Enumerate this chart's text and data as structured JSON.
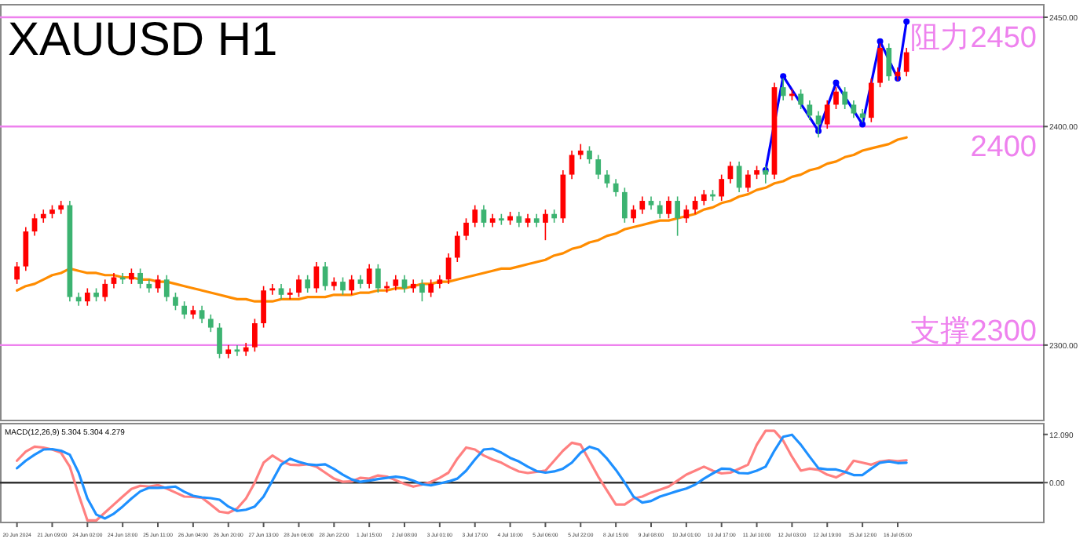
{
  "chart_data": [
    {
      "type": "candlestick",
      "title": "XAUUSD H1",
      "tick_labels": "y",
      "categories": [
        null,
        null,
        null,
        null,
        null,
        null,
        null,
        null,
        null,
        null,
        null,
        null,
        null,
        null,
        null,
        null,
        null,
        null,
        null,
        null,
        null,
        null,
        null,
        null,
        null,
        null,
        null,
        null,
        null,
        null,
        null,
        null,
        null,
        null,
        null,
        null,
        null,
        null,
        null,
        null,
        null,
        null,
        null,
        null,
        null,
        null,
        null,
        null,
        null,
        null,
        null,
        null,
        null,
        null,
        null,
        null,
        null,
        null,
        null,
        null,
        null,
        null,
        null,
        null,
        null,
        null,
        null,
        null,
        null,
        null,
        null,
        null,
        null,
        null,
        null,
        null,
        null,
        null,
        null,
        null,
        null,
        null,
        null,
        null,
        null,
        null,
        null,
        null,
        null,
        null,
        null,
        null,
        null,
        null,
        null,
        null,
        null,
        null,
        null,
        null,
        null,
        null
      ],
      "ohlc": [
        [
          2330,
          2338,
          2328,
          2336
        ],
        [
          2336,
          2354,
          2334,
          2352
        ],
        [
          2352,
          2360,
          2350,
          2358
        ],
        [
          2358,
          2362,
          2356,
          2360
        ],
        [
          2360,
          2364,
          2358,
          2362
        ],
        [
          2362,
          2366,
          2360,
          2364
        ],
        [
          2364,
          2366,
          2320,
          2322
        ],
        [
          2322,
          2324,
          2318,
          2320
        ],
        [
          2320,
          2326,
          2318,
          2324
        ],
        [
          2324,
          2326,
          2320,
          2322
        ],
        [
          2322,
          2330,
          2320,
          2328
        ],
        [
          2328,
          2333,
          2326,
          2331
        ],
        [
          2331,
          2333,
          2328,
          2330
        ],
        [
          2330,
          2335,
          2328,
          2333
        ],
        [
          2333,
          2335,
          2326,
          2328
        ],
        [
          2328,
          2330,
          2324,
          2326
        ],
        [
          2326,
          2332,
          2324,
          2330
        ],
        [
          2330,
          2332,
          2320,
          2322
        ],
        [
          2322,
          2324,
          2316,
          2318
        ],
        [
          2318,
          2320,
          2312,
          2314
        ],
        [
          2314,
          2318,
          2312,
          2316
        ],
        [
          2316,
          2318,
          2310,
          2312
        ],
        [
          2312,
          2314,
          2306,
          2308
        ],
        [
          2308,
          2310,
          2294,
          2296
        ],
        [
          2296,
          2300,
          2294,
          2298
        ],
        [
          2298,
          2300,
          2295,
          2297
        ],
        [
          2297,
          2301,
          2295,
          2299
        ],
        [
          2299,
          2312,
          2297,
          2310
        ],
        [
          2310,
          2327,
          2308,
          2325
        ],
        [
          2325,
          2328,
          2323,
          2326
        ],
        [
          2326,
          2328,
          2321,
          2323
        ],
        [
          2323,
          2326,
          2321,
          2324
        ],
        [
          2324,
          2332,
          2322,
          2330
        ],
        [
          2330,
          2332,
          2324,
          2326
        ],
        [
          2326,
          2338,
          2324,
          2336
        ],
        [
          2336,
          2338,
          2325,
          2327
        ],
        [
          2327,
          2331,
          2325,
          2329
        ],
        [
          2329,
          2331,
          2323,
          2325
        ],
        [
          2325,
          2332,
          2323,
          2330
        ],
        [
          2330,
          2332,
          2326,
          2328
        ],
        [
          2328,
          2337,
          2326,
          2335
        ],
        [
          2335,
          2337,
          2324,
          2326
        ],
        [
          2326,
          2329,
          2324,
          2327
        ],
        [
          2327,
          2332,
          2325,
          2330
        ],
        [
          2330,
          2332,
          2324,
          2326
        ],
        [
          2326,
          2330,
          2324,
          2328
        ],
        [
          2328,
          2330,
          2320,
          2324
        ],
        [
          2324,
          2330,
          2322,
          2328
        ],
        [
          2328,
          2332,
          2326,
          2330
        ],
        [
          2330,
          2342,
          2328,
          2340
        ],
        [
          2340,
          2352,
          2338,
          2350
        ],
        [
          2350,
          2358,
          2348,
          2356
        ],
        [
          2356,
          2364,
          2354,
          2362
        ],
        [
          2362,
          2364,
          2354,
          2356
        ],
        [
          2356,
          2360,
          2354,
          2358
        ],
        [
          2358,
          2360,
          2355,
          2357
        ],
        [
          2357,
          2361,
          2355,
          2359
        ],
        [
          2359,
          2361,
          2354,
          2356
        ],
        [
          2356,
          2360,
          2354,
          2358
        ],
        [
          2358,
          2360,
          2354,
          2356
        ],
        [
          2356,
          2362,
          2348,
          2360
        ],
        [
          2360,
          2362,
          2356,
          2358
        ],
        [
          2358,
          2380,
          2356,
          2378
        ],
        [
          2378,
          2389,
          2376,
          2387
        ],
        [
          2387,
          2392,
          2385,
          2389
        ],
        [
          2389,
          2391,
          2383,
          2385
        ],
        [
          2385,
          2387,
          2376,
          2378
        ],
        [
          2378,
          2380,
          2372,
          2374
        ],
        [
          2374,
          2376,
          2368,
          2370
        ],
        [
          2370,
          2372,
          2356,
          2358
        ],
        [
          2358,
          2364,
          2356,
          2362
        ],
        [
          2362,
          2368,
          2360,
          2366
        ],
        [
          2366,
          2368,
          2362,
          2364
        ],
        [
          2364,
          2366,
          2358,
          2360
        ],
        [
          2360,
          2368,
          2358,
          2366
        ],
        [
          2366,
          2368,
          2350,
          2358
        ],
        [
          2358,
          2364,
          2356,
          2362
        ],
        [
          2362,
          2368,
          2360,
          2366
        ],
        [
          2366,
          2371,
          2364,
          2369
        ],
        [
          2369,
          2371,
          2366,
          2368
        ],
        [
          2368,
          2378,
          2366,
          2376
        ],
        [
          2376,
          2384,
          2374,
          2382
        ],
        [
          2382,
          2384,
          2370,
          2372
        ],
        [
          2372,
          2380,
          2370,
          2378
        ],
        [
          2378,
          2382,
          2376,
          2380
        ],
        [
          2380,
          2382,
          2374,
          2378
        ],
        [
          2378,
          2420,
          2376,
          2418
        ],
        [
          2418,
          2422,
          2412,
          2414
        ],
        [
          2414,
          2417,
          2412,
          2415
        ],
        [
          2415,
          2417,
          2408,
          2410
        ],
        [
          2410,
          2412,
          2403,
          2405
        ],
        [
          2405,
          2407,
          2395,
          2401
        ],
        [
          2401,
          2412,
          2399,
          2410
        ],
        [
          2410,
          2418,
          2408,
          2416
        ],
        [
          2416,
          2418,
          2408,
          2410
        ],
        [
          2410,
          2412,
          2404,
          2406
        ],
        [
          2406,
          2408,
          2402,
          2404
        ],
        [
          2404,
          2422,
          2402,
          2420
        ],
        [
          2420,
          2438,
          2418,
          2436
        ],
        [
          2436,
          2438,
          2421,
          2423
        ],
        [
          2423,
          2427,
          2421,
          2425
        ],
        [
          2425,
          2436,
          2423,
          2434
        ]
      ],
      "colors": [
        "#ff0000",
        "#ff0000",
        "#ff0000",
        "#ff0000",
        "#ff0000",
        "#ff0000",
        "#3cb371",
        "#3cb371",
        "#ff0000",
        "#3cb371",
        "#ff0000",
        "#ff0000",
        "#3cb371",
        "#ff0000",
        "#3cb371",
        "#3cb371",
        "#ff0000",
        "#3cb371",
        "#3cb371",
        "#3cb371",
        "#ff0000",
        "#3cb371",
        "#3cb371",
        "#3cb371",
        "#ff0000",
        "#3cb371",
        "#ff0000",
        "#ff0000",
        "#ff0000",
        "#ff0000",
        "#3cb371",
        "#ff0000",
        "#ff0000",
        "#3cb371",
        "#ff0000",
        "#3cb371",
        "#ff0000",
        "#3cb371",
        "#ff0000",
        "#3cb371",
        "#ff0000",
        "#3cb371",
        "#ff0000",
        "#ff0000",
        "#3cb371",
        "#ff0000",
        "#3cb371",
        "#ff0000",
        "#ff0000",
        "#ff0000",
        "#ff0000",
        "#ff0000",
        "#ff0000",
        "#3cb371",
        "#ff0000",
        "#3cb371",
        "#ff0000",
        "#3cb371",
        "#ff0000",
        "#3cb371",
        "#ff0000",
        "#3cb371",
        "#ff0000",
        "#ff0000",
        "#ff0000",
        "#3cb371",
        "#3cb371",
        "#3cb371",
        "#3cb371",
        "#3cb371",
        "#ff0000",
        "#ff0000",
        "#3cb371",
        "#3cb371",
        "#ff0000",
        "#3cb371",
        "#ff0000",
        "#ff0000",
        "#ff0000",
        "#3cb371",
        "#ff0000",
        "#ff0000",
        "#3cb371",
        "#ff0000",
        "#ff0000",
        "#3cb371",
        "#ff0000",
        "#3cb371",
        "#ff0000",
        "#3cb371",
        "#3cb371",
        "#3cb371",
        "#ff0000",
        "#ff0000",
        "#3cb371",
        "#3cb371",
        "#3cb371",
        "#ff0000",
        "#ff0000",
        "#3cb371",
        "#ff0000",
        "#ff0000"
      ],
      "series": [
        {
          "type": "line",
          "color": "#ff8c00",
          "values": [
            2325,
            2327,
            2328,
            2330,
            2332,
            2333,
            2335,
            2334,
            2333,
            2333,
            2332,
            2332,
            2331,
            2331,
            2330,
            2330,
            2329,
            2329,
            2328,
            2327,
            2326,
            2325,
            2324,
            2323,
            2322,
            2321,
            2321,
            2320,
            2320,
            2320,
            2321,
            2321,
            2321,
            2322,
            2322,
            2322,
            2323,
            2323,
            2323,
            2324,
            2324,
            2325,
            2325,
            2326,
            2326,
            2327,
            2328,
            2328,
            2329,
            2329,
            2330,
            2331,
            2332,
            2333,
            2334,
            2335,
            2335,
            2336,
            2337,
            2338,
            2339,
            2341,
            2342,
            2344,
            2345,
            2347,
            2348,
            2350,
            2351,
            2353,
            2354,
            2355,
            2356,
            2357,
            2357,
            2358,
            2359,
            2360,
            2362,
            2363,
            2365,
            2366,
            2368,
            2369,
            2371,
            2372,
            2374,
            2375,
            2377,
            2378,
            2380,
            2381,
            2383,
            2384,
            2386,
            2387,
            2389,
            2390,
            2391,
            2392,
            2394,
            2395
          ]
        },
        {
          "type": "line",
          "color": "#0000ff",
          "marker": "circle",
          "values": [
            null,
            null,
            null,
            null,
            null,
            null,
            null,
            null,
            null,
            null,
            null,
            null,
            null,
            null,
            null,
            null,
            null,
            null,
            null,
            null,
            null,
            null,
            null,
            null,
            null,
            null,
            null,
            null,
            null,
            null,
            null,
            null,
            null,
            null,
            null,
            null,
            null,
            null,
            null,
            null,
            null,
            null,
            null,
            null,
            null,
            null,
            null,
            null,
            null,
            null,
            null,
            null,
            null,
            null,
            null,
            null,
            null,
            null,
            null,
            null,
            null,
            null,
            null,
            null,
            null,
            null,
            null,
            null,
            null,
            null,
            null,
            null,
            null,
            null,
            null,
            null,
            null,
            null,
            null,
            null,
            null,
            null,
            null,
            null,
            null,
            2380,
            null,
            2423,
            null,
            null,
            null,
            2398,
            null,
            2420,
            null,
            null,
            2401,
            null,
            2439,
            null,
            2422,
            2448
          ]
        }
      ],
      "ylim": [
        2265.5,
        2455.75
      ],
      "yticks": [
        {
          "value": 2300,
          "label": "2300.00"
        },
        {
          "value": 2400,
          "label": "2400.00"
        },
        {
          "value": 2450,
          "label": "2450.00"
        }
      ],
      "ref_lines": [
        {
          "axis": "y",
          "value": 2450,
          "label": "阻力2450",
          "color": "#ee82ee"
        },
        {
          "axis": "y",
          "value": 2400,
          "label": "2400",
          "color": "#ee82ee"
        },
        {
          "axis": "y",
          "value": 2300,
          "label": "支撑2300",
          "color": "#ee82ee"
        }
      ]
    },
    {
      "type": "line",
      "title": "MACD(12,26,9) 5.304 5.304 4.279",
      "categories": [
        "20 Jun 2024",
        null,
        null,
        null,
        "21 Jun 09:00",
        null,
        null,
        null,
        "24 Jun 02:00",
        null,
        null,
        null,
        "24 Jun 18:00",
        null,
        null,
        null,
        "25 Jun 11:00",
        null,
        null,
        null,
        "26 Jun 04:00",
        null,
        null,
        null,
        "26 Jun 20:00",
        null,
        null,
        null,
        "27 Jun 13:00",
        null,
        null,
        null,
        "28 Jun 06:00",
        null,
        null,
        null,
        "28 Jun 22:00",
        null,
        null,
        null,
        "1 Jul 15:00",
        null,
        null,
        null,
        "2 Jul 08:00",
        null,
        null,
        null,
        "3 Jul 01:00",
        null,
        null,
        null,
        "3 Jul 17:00",
        null,
        null,
        null,
        "4 Jul 10:00",
        null,
        null,
        null,
        "5 Jul 06:00",
        null,
        null,
        null,
        "5 Jul 22:00",
        null,
        null,
        null,
        "8 Jul 15:00",
        null,
        null,
        null,
        "9 Jul 08:00",
        null,
        null,
        null,
        "10 Jul 01:00",
        null,
        null,
        null,
        "10 Jul 17:00",
        null,
        null,
        null,
        "11 Jul 10:00",
        null,
        null,
        null,
        "12 Jul 03:00",
        null,
        null,
        null,
        "12 Jul 19:00",
        null,
        null,
        null,
        "15 Jul 12:00",
        null,
        null,
        null,
        "16 Jul 05:00",
        null
      ],
      "series": [
        {
          "color": "#ff8080",
          "values": [
            5.5,
            7.8,
            9.0,
            8.8,
            8.3,
            7.5,
            4,
            -3,
            -9.5,
            -9.5,
            -7.5,
            -5.5,
            -3.5,
            -1.6,
            -0.8,
            -1.0,
            -0.6,
            -1.5,
            -2.5,
            -3.5,
            -3.6,
            -3.8,
            -5.5,
            -7.3,
            -7.6,
            -6.5,
            -4.0,
            0.0,
            5.0,
            6.8,
            5.4,
            4.5,
            4.4,
            4.6,
            4.0,
            2.5,
            1.0,
            0.2,
            0.3,
            1.2,
            1.0,
            1.8,
            1.5,
            0.6,
            -0.3,
            -1.0,
            -0.5,
            0.2,
            1.2,
            2.5,
            6.0,
            8.8,
            8.3,
            6.8,
            5.8,
            5.0,
            3.8,
            2.8,
            2.4,
            2.7,
            3.0,
            5.5,
            8.0,
            10.0,
            9.5,
            5.5,
            1.5,
            -2.0,
            -5.5,
            -5.5,
            -4.0,
            -3.5,
            -2.5,
            -1.8,
            -1.0,
            0.5,
            2.0,
            3.0,
            4.0,
            3.0,
            2.3,
            2.5,
            3.5,
            4.5,
            9.5,
            13.0,
            13.0,
            10.5,
            6.5,
            3.0,
            3.5,
            3.2,
            2.0,
            1.3,
            2.5,
            5.5,
            5.0,
            4.5,
            5.3,
            5.6,
            5.4,
            5.6
          ]
        },
        {
          "color": "#1e90ff",
          "values": [
            3.6,
            5.5,
            7.0,
            8.3,
            8.4,
            8.0,
            7.0,
            2.5,
            -4,
            -8,
            -9.0,
            -7.8,
            -6.0,
            -4.0,
            -2.2,
            -1.3,
            -1.3,
            -1.2,
            -1.0,
            -2.3,
            -3.3,
            -3.7,
            -3.9,
            -4.3,
            -6.0,
            -7.1,
            -6.8,
            -6.0,
            -3.5,
            0.5,
            4.5,
            6.0,
            5.2,
            4.6,
            4.4,
            4.6,
            3.4,
            2.0,
            0.8,
            0.2,
            0.5,
            0.9,
            1.2,
            1.5,
            1.2,
            0.5,
            -0.4,
            -0.7,
            -0.2,
            0.3,
            1.0,
            3.0,
            5.8,
            8.3,
            8.5,
            7.5,
            6.2,
            5.3,
            4.0,
            2.9,
            2.5,
            2.8,
            3.5,
            5.0,
            7.5,
            9.0,
            8.3,
            6.0,
            3.2,
            0.0,
            -3.5,
            -5.0,
            -4.6,
            -3.5,
            -2.8,
            -2.1,
            -1.5,
            -0.5,
            1.0,
            2.3,
            3.5,
            3.4,
            2.4,
            2.3,
            3.0,
            4.0,
            8.0,
            11.5,
            12.0,
            9.5,
            6.5,
            3.6,
            3.3,
            3.3,
            2.7,
            1.9,
            1.9,
            3.5,
            5.0,
            5.3,
            4.9,
            5.0
          ]
        }
      ],
      "ylim": [
        -10,
        14.8
      ],
      "yticks": [
        {
          "value": 12.09,
          "label": "12.090"
        },
        {
          "value": 0,
          "label": "0.00"
        }
      ],
      "ref_lines": [
        {
          "axis": "y",
          "value": 0,
          "color": "#333333"
        }
      ]
    }
  ]
}
